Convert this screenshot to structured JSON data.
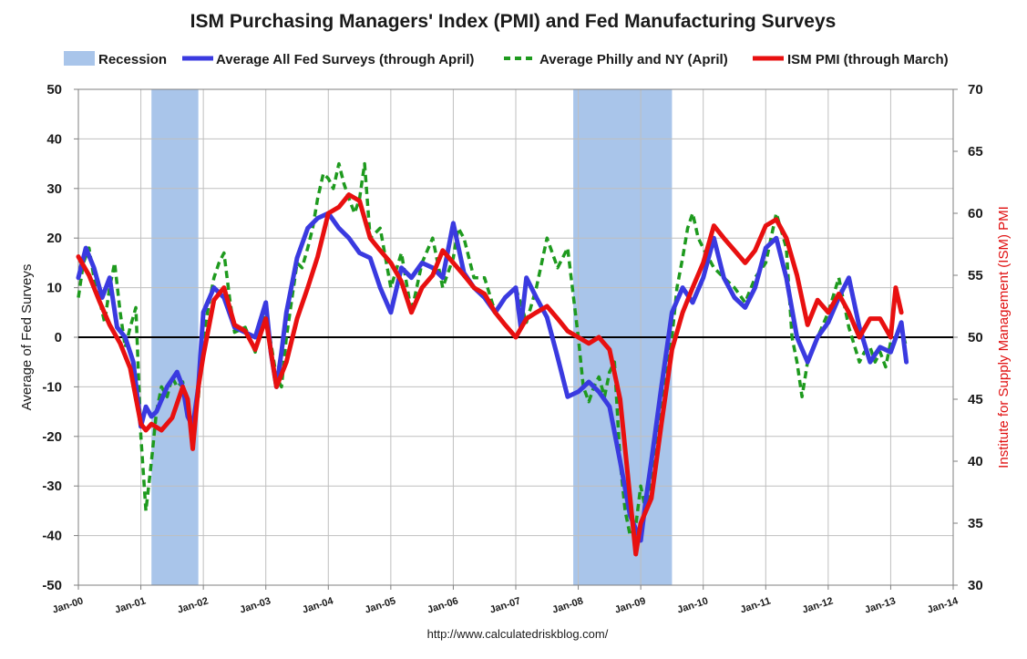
{
  "chart_data": {
    "type": "line",
    "title": "ISM Purchasing Managers' Index (PMI) and Fed Manufacturing Surveys",
    "source": "http://www.calculatedriskblog.com/",
    "ylabel_left": "Average of Fed Surveys",
    "ylabel_right": "Institute for Supply Management (ISM) PMI",
    "ylim_left": [
      -50,
      50
    ],
    "ylim_right": [
      30,
      70
    ],
    "xlim": [
      2000.0,
      2014.0
    ],
    "yticks_left": [
      "50",
      "40",
      "30",
      "20",
      "10",
      "0",
      "-10",
      "-20",
      "-30",
      "-40",
      "-50"
    ],
    "yticks_right": [
      "70",
      "65",
      "60",
      "55",
      "50",
      "45",
      "40",
      "35",
      "30"
    ],
    "xticks": [
      "Jan-00",
      "Jan-01",
      "Jan-02",
      "Jan-03",
      "Jan-04",
      "Jan-05",
      "Jan-06",
      "Jan-07",
      "Jan-08",
      "Jan-09",
      "Jan-10",
      "Jan-11",
      "Jan-12",
      "Jan-13",
      "Jan-14"
    ],
    "grid": true,
    "recessions": [
      {
        "start": 2001.17,
        "end": 2001.92
      },
      {
        "start": 2007.92,
        "end": 2009.5
      }
    ],
    "legend": [
      {
        "label": "Recession",
        "style": "band",
        "color": "#a9c5ea"
      },
      {
        "label": "Average All Fed Surveys (through April)",
        "style": "solid",
        "color": "#3a3ae0"
      },
      {
        "label": "Average Philly and NY (April)",
        "style": "dashed",
        "color": "#1e9a1e"
      },
      {
        "label": "ISM PMI (through March)",
        "style": "solid",
        "color": "#e81010"
      }
    ],
    "series": [
      {
        "name": "Average All Fed Surveys (through April)",
        "axis": "left",
        "color": "#3a3ae0",
        "style": "solid",
        "x": [
          2000.0,
          2000.12,
          2000.25,
          2000.38,
          2000.5,
          2000.62,
          2000.75,
          2000.88,
          2001.0,
          2001.08,
          2001.17,
          2001.25,
          2001.42,
          2001.58,
          2001.67,
          2001.75,
          2001.83,
          2001.92,
          2002.0,
          2002.17,
          2002.33,
          2002.5,
          2002.67,
          2002.83,
          2003.0,
          2003.08,
          2003.17,
          2003.25,
          2003.33,
          2003.5,
          2003.67,
          2003.83,
          2004.0,
          2004.17,
          2004.33,
          2004.5,
          2004.67,
          2004.83,
          2005.0,
          2005.17,
          2005.33,
          2005.5,
          2005.67,
          2005.83,
          2006.0,
          2006.17,
          2006.33,
          2006.5,
          2006.67,
          2006.83,
          2007.0,
          2007.08,
          2007.17,
          2007.33,
          2007.5,
          2007.67,
          2007.83,
          2008.0,
          2008.17,
          2008.33,
          2008.5,
          2008.67,
          2008.83,
          2009.0,
          2009.08,
          2009.17,
          2009.33,
          2009.5,
          2009.67,
          2009.83,
          2010.0,
          2010.17,
          2010.33,
          2010.5,
          2010.67,
          2010.83,
          2011.0,
          2011.17,
          2011.33,
          2011.5,
          2011.67,
          2011.83,
          2012.0,
          2012.17,
          2012.33,
          2012.5,
          2012.67,
          2012.83,
          2013.0,
          2013.17,
          2013.25
        ],
        "y": [
          12,
          18,
          14,
          8,
          12,
          2,
          0,
          -5,
          -18,
          -14,
          -16,
          -15,
          -10,
          -7,
          -10,
          -16,
          -18,
          -10,
          5,
          10,
          8,
          2,
          1,
          0,
          7,
          -3,
          -10,
          -3,
          5,
          16,
          22,
          24,
          25,
          22,
          20,
          17,
          16,
          10,
          5,
          14,
          12,
          15,
          14,
          12,
          23,
          13,
          10,
          8,
          5,
          8,
          10,
          2,
          12,
          8,
          4,
          -4,
          -12,
          -11,
          -9,
          -11,
          -14,
          -25,
          -36,
          -41,
          -33,
          -25,
          -10,
          5,
          10,
          7,
          12,
          20,
          12,
          8,
          6,
          10,
          18,
          20,
          12,
          0,
          -5,
          0,
          3,
          8,
          12,
          2,
          -5,
          -2,
          -3,
          3,
          -5
        ]
      },
      {
        "name": "Average Philly and NY (April)",
        "axis": "left",
        "color": "#1e9a1e",
        "style": "dashed",
        "x": [
          2000.0,
          2000.08,
          2000.17,
          2000.25,
          2000.33,
          2000.42,
          2000.5,
          2000.58,
          2000.67,
          2000.75,
          2000.83,
          2000.92,
          2001.0,
          2001.08,
          2001.17,
          2001.25,
          2001.33,
          2001.42,
          2001.5,
          2001.58,
          2001.67,
          2001.75,
          2001.83,
          2001.92,
          2002.0,
          2002.08,
          2002.17,
          2002.25,
          2002.33,
          2002.42,
          2002.5,
          2002.67,
          2002.83,
          2003.0,
          2003.17,
          2003.25,
          2003.33,
          2003.42,
          2003.5,
          2003.58,
          2003.67,
          2003.75,
          2003.83,
          2003.92,
          2004.0,
          2004.08,
          2004.17,
          2004.25,
          2004.33,
          2004.42,
          2004.5,
          2004.58,
          2004.67,
          2004.83,
          2005.0,
          2005.17,
          2005.33,
          2005.5,
          2005.67,
          2005.83,
          2006.0,
          2006.08,
          2006.17,
          2006.33,
          2006.5,
          2006.67,
          2006.83,
          2007.0,
          2007.17,
          2007.33,
          2007.5,
          2007.67,
          2007.83,
          2008.0,
          2008.08,
          2008.17,
          2008.25,
          2008.33,
          2008.42,
          2008.5,
          2008.58,
          2008.67,
          2008.75,
          2008.83,
          2008.92,
          2009.0,
          2009.08,
          2009.17,
          2009.25,
          2009.33,
          2009.42,
          2009.5,
          2009.58,
          2009.67,
          2009.75,
          2009.83,
          2009.92,
          2010.0,
          2010.17,
          2010.33,
          2010.5,
          2010.67,
          2010.83,
          2011.0,
          2011.17,
          2011.33,
          2011.42,
          2011.5,
          2011.58,
          2011.67,
          2011.83,
          2012.0,
          2012.17,
          2012.33,
          2012.5,
          2012.58,
          2012.67,
          2012.75,
          2012.83,
          2012.92,
          2013.0,
          2013.08,
          2013.17,
          2013.25
        ],
        "y": [
          8,
          15,
          18,
          12,
          8,
          3,
          10,
          15,
          5,
          -2,
          2,
          6,
          -20,
          -35,
          -25,
          -15,
          -10,
          -12,
          -8,
          -10,
          -9,
          -15,
          -17,
          -12,
          0,
          6,
          12,
          15,
          17,
          8,
          1,
          2,
          -3,
          5,
          -8,
          -10,
          0,
          8,
          15,
          14,
          18,
          22,
          28,
          33,
          32,
          30,
          35,
          31,
          28,
          25,
          28,
          35,
          20,
          22,
          10,
          17,
          5,
          15,
          20,
          10,
          16,
          22,
          20,
          12,
          12,
          5,
          8,
          10,
          3,
          10,
          20,
          14,
          18,
          0,
          -10,
          -13,
          -10,
          -8,
          -12,
          -7,
          -5,
          -25,
          -35,
          -40,
          -38,
          -30,
          -35,
          -28,
          -20,
          -13,
          -5,
          0,
          10,
          16,
          22,
          25,
          20,
          18,
          14,
          12,
          10,
          7,
          12,
          15,
          25,
          18,
          0,
          -5,
          -12,
          -5,
          0,
          5,
          12,
          2,
          -5,
          -3,
          -2,
          -5,
          -3,
          -6,
          -1,
          0,
          2,
          -2
        ]
      },
      {
        "name": "ISM PMI (through March)",
        "axis": "right",
        "color": "#e81010",
        "style": "solid",
        "x": [
          2000.0,
          2000.17,
          2000.33,
          2000.5,
          2000.67,
          2000.83,
          2001.0,
          2001.08,
          2001.17,
          2001.33,
          2001.5,
          2001.67,
          2001.75,
          2001.83,
          2001.92,
          2002.0,
          2002.17,
          2002.33,
          2002.5,
          2002.67,
          2002.83,
          2003.0,
          2003.17,
          2003.33,
          2003.5,
          2003.67,
          2003.83,
          2004.0,
          2004.17,
          2004.33,
          2004.5,
          2004.67,
          2004.83,
          2005.0,
          2005.17,
          2005.33,
          2005.5,
          2005.67,
          2005.83,
          2006.0,
          2006.17,
          2006.33,
          2006.5,
          2006.67,
          2006.83,
          2007.0,
          2007.17,
          2007.33,
          2007.5,
          2007.67,
          2007.83,
          2008.0,
          2008.17,
          2008.33,
          2008.5,
          2008.67,
          2008.83,
          2008.92,
          2009.0,
          2009.17,
          2009.33,
          2009.5,
          2009.67,
          2009.83,
          2010.0,
          2010.17,
          2010.33,
          2010.5,
          2010.67,
          2010.83,
          2011.0,
          2011.17,
          2011.33,
          2011.5,
          2011.67,
          2011.83,
          2012.0,
          2012.17,
          2012.33,
          2012.5,
          2012.67,
          2012.83,
          2013.0,
          2013.08,
          2013.17
        ],
        "y": [
          56.5,
          55,
          53,
          51,
          49.5,
          47.5,
          43,
          42.5,
          43,
          42.5,
          43.5,
          46,
          45,
          41,
          46,
          48.5,
          53,
          54,
          51,
          50.5,
          49,
          51.5,
          46,
          48,
          51.5,
          54,
          56.5,
          60,
          60.5,
          61.5,
          61,
          58,
          57,
          56,
          54.5,
          52,
          54,
          55,
          57,
          56,
          55,
          54,
          53.5,
          52,
          51,
          50,
          51.5,
          52,
          52.5,
          51.5,
          50.5,
          50,
          49.5,
          50,
          49,
          45,
          37,
          32.5,
          35,
          37,
          43,
          49,
          52,
          54,
          56,
          59,
          58,
          57,
          56,
          57,
          59,
          59.5,
          58,
          55,
          51,
          53,
          52,
          53.5,
          52,
          50,
          51.5,
          51.5,
          50,
          54,
          52
        ]
      }
    ]
  }
}
